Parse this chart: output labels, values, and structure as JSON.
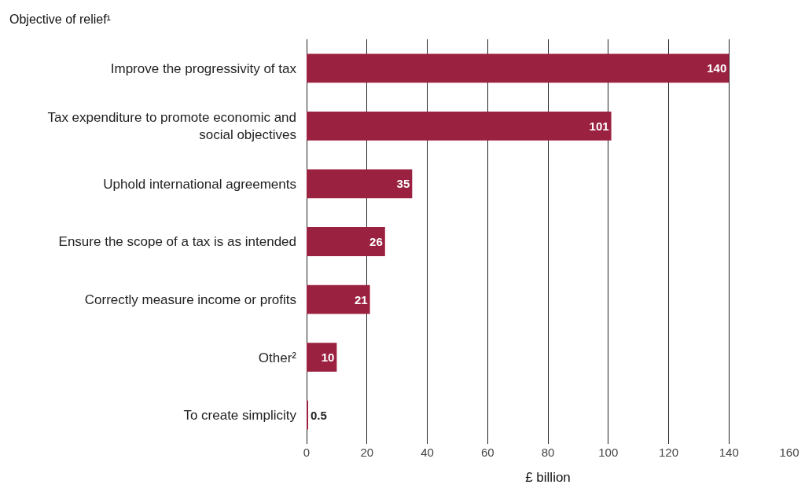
{
  "chart_data": {
    "type": "bar",
    "orientation": "horizontal",
    "ylabel": "Objective of relief¹",
    "xlabel": "£ billion",
    "categories": [
      "Improve the progressivity of tax",
      "Tax expenditure to promote economic and social objectives",
      "Uphold international agreements",
      "Ensure the scope of a tax is as intended",
      "Correctly measure income or profits",
      "Other²",
      "To create simplicity"
    ],
    "values": [
      140,
      101,
      35,
      26,
      21,
      10,
      0.5
    ],
    "color": "#9b2140",
    "data_labels": true,
    "xlim": [
      0,
      160
    ],
    "xticks": [
      0,
      20,
      40,
      60,
      80,
      100,
      120,
      140,
      160
    ],
    "grid": "x"
  }
}
